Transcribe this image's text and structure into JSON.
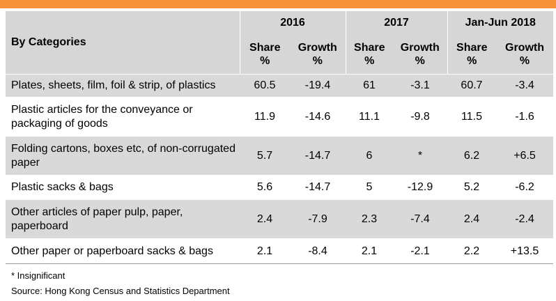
{
  "colors": {
    "accent_bar": "#f7923a",
    "header_bg": "#d6d6d6",
    "stripe_bg": "#d9d9d9"
  },
  "header": {
    "category_label": "By Categories",
    "periods": [
      "2016",
      "2017",
      "Jan-Jun 2018"
    ],
    "share": "Share",
    "growth": "Growth",
    "unit": "%"
  },
  "rows": [
    {
      "label": "Plates, sheets, film, foil & strip, of plastics",
      "values": [
        "60.5",
        "-19.4",
        "61",
        "-3.1",
        "60.7",
        "-3.4"
      ]
    },
    {
      "label": "Plastic articles for the conveyance or packaging of goods",
      "values": [
        "11.9",
        "-14.6",
        "11.1",
        "-9.8",
        "11.5",
        "-1.6"
      ]
    },
    {
      "label": "Folding cartons, boxes etc, of non-corrugated paper",
      "values": [
        "5.7",
        "-14.7",
        "6",
        "*",
        "6.2",
        "+6.5"
      ]
    },
    {
      "label": "Plastic sacks & bags",
      "values": [
        "5.6",
        "-14.7",
        "5",
        "-12.9",
        "5.2",
        "-6.2"
      ]
    },
    {
      "label": "Other articles of paper pulp, paper, paperboard",
      "values": [
        "2.4",
        "-7.9",
        "2.3",
        "-7.4",
        "2.4",
        "-2.4"
      ]
    },
    {
      "label": "Other paper or paperboard sacks & bags",
      "values": [
        "2.1",
        "-8.4",
        "2.1",
        "-2.1",
        "2.2",
        "+13.5"
      ]
    }
  ],
  "footnote": "* Insignificant",
  "source": "Source: Hong Kong Census and Statistics Department"
}
